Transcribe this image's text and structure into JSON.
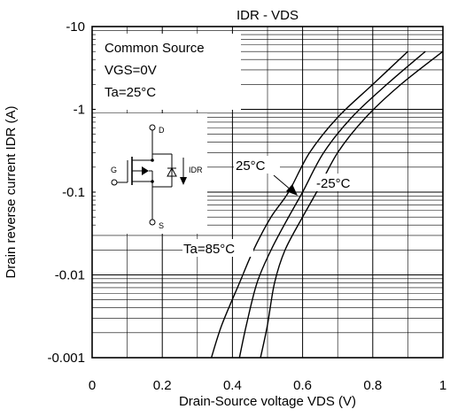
{
  "chart_data": {
    "type": "line",
    "title": "IDR - VDS",
    "xlabel": "Drain-Source voltage VDS (V)",
    "ylabel": "Drain reverse current IDR (A)",
    "xlim": [
      0,
      1
    ],
    "ylim": [
      -0.001,
      -10
    ],
    "yscale": "log",
    "grid": true,
    "x_ticks": [
      "0",
      "0.2",
      "0.4",
      "0.6",
      "0.8",
      "1"
    ],
    "y_ticks": [
      "-0.001",
      "-0.01",
      "-0.1",
      "-1",
      "-10"
    ],
    "conditions": [
      "Common Source",
      "VGS=0V",
      "Ta=25°C"
    ],
    "series": [
      {
        "name": "Ta=85°C",
        "x": [
          0.34,
          0.37,
          0.42,
          0.46,
          0.51,
          0.56,
          0.62,
          0.7,
          0.8,
          0.9
        ],
        "y": [
          -0.001,
          -0.0025,
          -0.008,
          -0.02,
          -0.05,
          -0.1,
          -0.3,
          -0.8,
          -2.0,
          -5.0
        ]
      },
      {
        "name": "25°C",
        "x": [
          0.42,
          0.44,
          0.47,
          0.51,
          0.56,
          0.6,
          0.66,
          0.74,
          0.84,
          0.95
        ],
        "y": [
          -0.001,
          -0.0025,
          -0.008,
          -0.02,
          -0.05,
          -0.1,
          -0.3,
          -0.8,
          -2.0,
          -5.0
        ]
      },
      {
        "name": "-25°C",
        "x": [
          0.48,
          0.5,
          0.52,
          0.55,
          0.6,
          0.64,
          0.7,
          0.78,
          0.88,
          1.0
        ],
        "y": [
          -0.001,
          -0.0025,
          -0.008,
          -0.02,
          -0.05,
          -0.1,
          -0.3,
          -0.8,
          -2.0,
          -5.0
        ]
      }
    ],
    "annotations": [
      "25°C",
      "-25°C",
      "Ta=85°C"
    ],
    "schematic_labels": {
      "drain": "D",
      "gate": "G",
      "source": "S",
      "current": "IDR"
    }
  }
}
